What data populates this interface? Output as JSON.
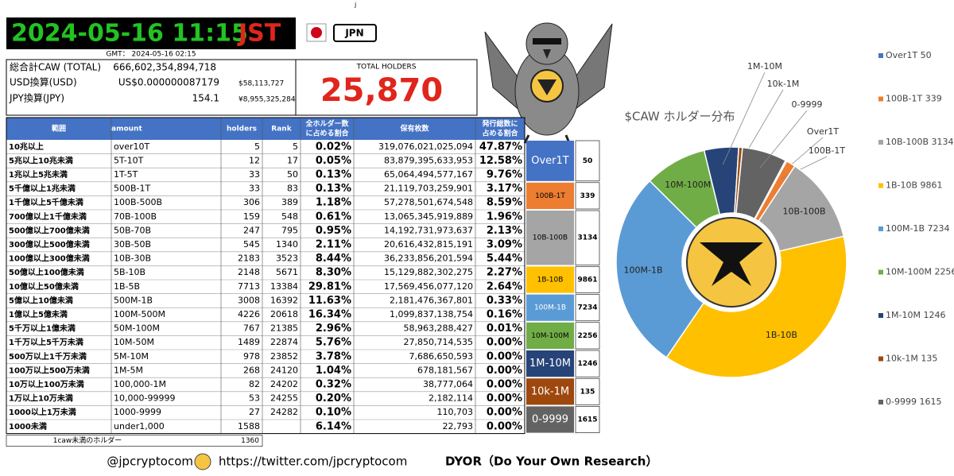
{
  "header": {
    "mark": "j",
    "datetime": "2024-05-16 11:15",
    "timezone": "JST",
    "country": "JPN",
    "gmt": "GMT： 2024-05-16 02:15"
  },
  "summary": {
    "rows": [
      [
        "総合計CAW (TOTAL)",
        "666,602,354,894,718"
      ],
      [
        "USD換算(USD)",
        "US$0.000000087179",
        "$58,113,727"
      ],
      [
        "JPY換算(JPY)",
        "154.1",
        "¥8,955,325,284"
      ]
    ],
    "holders_label": "TOTAL HOLDERS",
    "holders": "25,870"
  },
  "table": {
    "header": [
      "範囲",
      "amount",
      "holders",
      "Rank",
      [
        "全ホルダー数",
        "に占める割合"
      ],
      "保有枚数",
      [
        "発行総数に",
        "占める割合"
      ]
    ],
    "rows": [
      [
        "10兆以上",
        "over10T",
        "5",
        "5",
        "0.02%",
        "319,076,021,025,094",
        "47.87%"
      ],
      [
        "5兆以上10兆未満",
        "5T-10T",
        "12",
        "17",
        "0.05%",
        "83,879,395,633,953",
        "12.58%"
      ],
      [
        "1兆以上5兆未満",
        "1T-5T",
        "33",
        "50",
        "0.13%",
        "65,064,494,577,167",
        "9.76%"
      ],
      [
        "5千億以上1兆未満",
        "500B-1T",
        "33",
        "83",
        "0.13%",
        "21,119,703,259,901",
        "3.17%"
      ],
      [
        "1千億以上5千億未満",
        "100B-500B",
        "306",
        "389",
        "1.18%",
        "57,278,501,674,548",
        "8.59%"
      ],
      [
        "700億以上1千億未満",
        "70B-100B",
        "159",
        "548",
        "0.61%",
        "13,065,345,919,889",
        "1.96%"
      ],
      [
        "500億以上700億未満",
        "50B-70B",
        "247",
        "795",
        "0.95%",
        "14,192,731,973,637",
        "2.13%"
      ],
      [
        "300億以上500億未満",
        "30B-50B",
        "545",
        "1340",
        "2.11%",
        "20,616,432,815,191",
        "3.09%"
      ],
      [
        "100億以上300億未満",
        "10B-30B",
        "2183",
        "3523",
        "8.44%",
        "36,233,856,201,594",
        "5.44%"
      ],
      [
        "50億以上100億未満",
        "5B-10B",
        "2148",
        "5671",
        "8.30%",
        "15,129,882,302,275",
        "2.27%"
      ],
      [
        "10億以上50億未満",
        "1B-5B",
        "7713",
        "13384",
        "29.81%",
        "17,569,456,077,120",
        "2.64%"
      ],
      [
        "5億以上10億未満",
        "500M-1B",
        "3008",
        "16392",
        "11.63%",
        "2,181,476,367,801",
        "0.33%"
      ],
      [
        "1億以上5億未満",
        "100M-500M",
        "4226",
        "20618",
        "16.34%",
        "1,099,837,138,754",
        "0.16%"
      ],
      [
        "5千万以上1億未満",
        "50M-100M",
        "767",
        "21385",
        "2.96%",
        "58,963,288,427",
        "0.01%"
      ],
      [
        "1千万以上5千万未満",
        "10M-50M",
        "1489",
        "22874",
        "5.76%",
        "27,850,714,535",
        "0.00%"
      ],
      [
        "500万以上1千万未満",
        "5M-10M",
        "978",
        "23852",
        "3.78%",
        "7,686,650,593",
        "0.00%"
      ],
      [
        "100万以上500万未満",
        "1M-5M",
        "268",
        "24120",
        "1.04%",
        "678,181,567",
        "0.00%"
      ],
      [
        "10万以上100万未満",
        "100,000-1M",
        "82",
        "24202",
        "0.32%",
        "38,777,064",
        "0.00%"
      ],
      [
        "1万以上10万未満",
        "10,000-99999",
        "53",
        "24255",
        "0.20%",
        "2,182,114",
        "0.00%"
      ],
      [
        "1000以上1万未満",
        "1000-9999",
        "27",
        "24282",
        "0.10%",
        "110,703",
        "0.00%"
      ],
      [
        "1000未満",
        "under1,000",
        "1588",
        null,
        "6.14%",
        "22,793",
        "0.00%"
      ]
    ],
    "footer": [
      "1caw未満のホルダー",
      "1360"
    ]
  },
  "chart_data": {
    "type": "pie",
    "title": "$CAW ホルダー分布",
    "donut": true,
    "categories": [
      "Over1T",
      "100B-1T",
      "10B-100B",
      "1B-10B",
      "100M-1B",
      "10M-100M",
      "1M-10M",
      "10k-1M",
      "0-9999"
    ],
    "values": [
      50,
      339,
      3134,
      9861,
      7234,
      2256,
      1246,
      135,
      1615
    ],
    "colors": [
      "#4472c4",
      "#ed7d31",
      "#a5a5a5",
      "#ffc000",
      "#5b9bd5",
      "#70ad47",
      "#264478",
      "#9e480e",
      "#636363"
    ],
    "legend_labels": [
      "Over1T 50",
      "100B-1T 339",
      "10B-100B 3134",
      "1B-10B 9861",
      "100M-1B 7234",
      "10M-100M 2256",
      "1M-10M 1246",
      "10k-1M 135",
      "0-9999 1615"
    ]
  },
  "footer": {
    "handle": "@jpcryptocom",
    "url": "https://twitter.com/jpcryptocom",
    "note": "DYOR（Do Your Own Research）"
  }
}
